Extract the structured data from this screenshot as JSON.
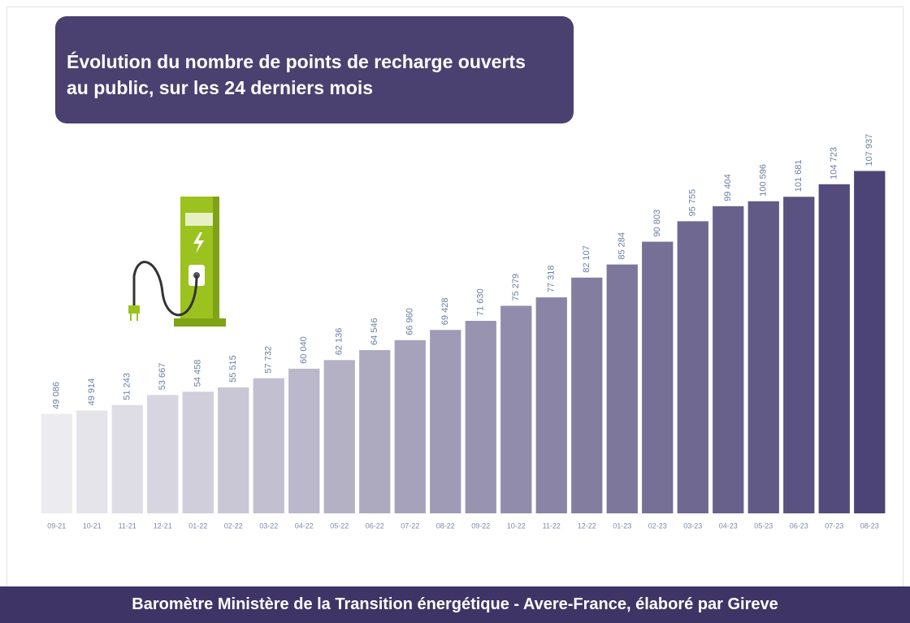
{
  "chart_data": {
    "type": "bar",
    "title": "Évolution du nombre de points de recharge ouverts au public, sur les 24 derniers mois",
    "source": "Baromètre Ministère de la Transition énergétique - Avere-France, élaboré par Gireve",
    "categories": [
      "09-21",
      "10-21",
      "11-21",
      "12-21",
      "01-22",
      "02-22",
      "03-22",
      "04-22",
      "05-22",
      "06-22",
      "07-22",
      "08-22",
      "09-22",
      "10-22",
      "11-22",
      "12-22",
      "01-23",
      "02-23",
      "03-23",
      "04-23",
      "05-23",
      "06-23",
      "07-23",
      "08-23"
    ],
    "values": [
      49086,
      49914,
      51243,
      53667,
      54458,
      55515,
      57732,
      60040,
      62136,
      64546,
      66960,
      69428,
      71630,
      75279,
      77318,
      82107,
      85284,
      90803,
      95755,
      99404,
      100596,
      101681,
      104723,
      107937
    ],
    "value_labels": [
      "49 086",
      "49 914",
      "51 243",
      "53 667",
      "54 458",
      "55 515",
      "57 732",
      "60 040",
      "62 136",
      "64 546",
      "66 960",
      "69 428",
      "71 630",
      "75 279",
      "77 318",
      "82 107",
      "85 284",
      "90 803",
      "95 755",
      "99 404",
      "100 596",
      "101 681",
      "104 723",
      "107 937"
    ],
    "colors": [
      "#ecebf0",
      "#e5e4eb",
      "#dedce5",
      "#d7d5e0",
      "#d0cedb",
      "#c9c7d5",
      "#c2bfd0",
      "#bbb8cb",
      "#b4b1c5",
      "#adaac0",
      "#a6a2bb",
      "#9f9bb6",
      "#9894b0",
      "#918cab",
      "#8a85a6",
      "#837ea0",
      "#7d779b",
      "#766f96",
      "#6f6890",
      "#68618b",
      "#615a86",
      "#5a5280",
      "#534b7b",
      "#4c4476"
    ],
    "ylim": [
      25000,
      110000
    ]
  }
}
